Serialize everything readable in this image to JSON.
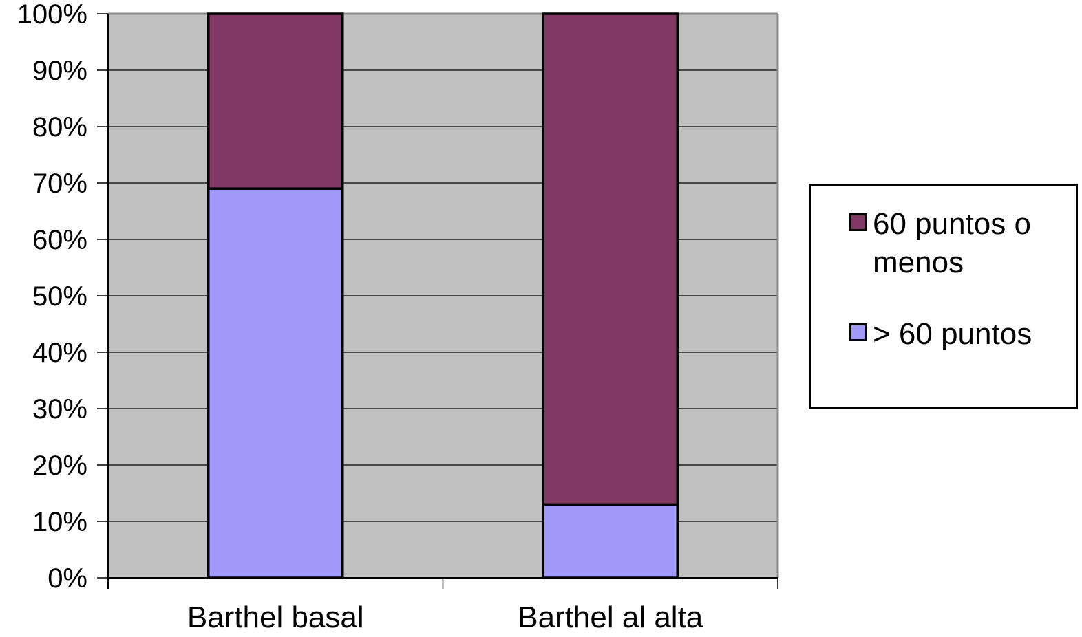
{
  "chart_data": {
    "type": "bar",
    "stacked": true,
    "percent": true,
    "categories": [
      "Barthel basal",
      "Barthel al alta"
    ],
    "series": [
      {
        "name": "> 60 puntos",
        "values": [
          69,
          13
        ],
        "color": "#a099f9"
      },
      {
        "name": "60 puntos o menos",
        "values": [
          31,
          87
        ],
        "color": "#803865"
      }
    ],
    "yticks": [
      "0%",
      "10%",
      "20%",
      "30%",
      "40%",
      "50%",
      "60%",
      "70%",
      "80%",
      "90%",
      "100%"
    ],
    "ylim": [
      0,
      100
    ],
    "grid": true,
    "plot_background": "#c0c0c0",
    "legend_position": "right",
    "legend_order": [
      "60 puntos o menos",
      "> 60 puntos"
    ]
  }
}
